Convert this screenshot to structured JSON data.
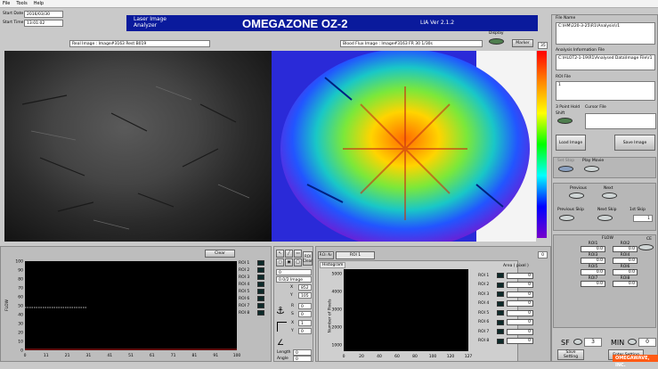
{
  "menu": [
    "File",
    "Tools",
    "Help"
  ],
  "start_date_label": "Start Date",
  "start_date": "2016/03/30",
  "start_time_label": "Start Time",
  "start_time": "13:01:02",
  "real_image_label": "Real Image : Image#3163 Rest B019",
  "flux_image_label": "Blood Flux Image : Image#3163 FR 30 1/30s",
  "banner": {
    "line1": "Laser Image",
    "line2": "Analyzer",
    "title": "OMEGAZONE OZ-2",
    "version": "LIA Ver 2.1.2"
  },
  "display_label": "Display",
  "marker_label": "Marker",
  "scale_max": "35",
  "colorbar_min": "0",
  "right": {
    "file_name_label": "File Name",
    "file_name": "C:\\HM\\220-3-25\\R1\\Analysis\\r1",
    "analysis_file_label": "Analysis Information File",
    "analysis_file": "C:\\HLOT2-1-19\\R1\\Analysed Data\\Image File\\r1",
    "roi_file_label": "ROI File",
    "roi_file": "1",
    "delay_label": "3 Point Hold",
    "cursor_label": "Cursor File",
    "cursor_sub": "Shift",
    "load_image": "Load Image",
    "save_image": "Save Image",
    "set_stop": "Set Stop",
    "play": "Play Movie",
    "previous": "Previous",
    "next": "Next",
    "previous_skip": "Previous Skip",
    "next_skip": "Next Skip",
    "1st_skip": "1st Skip",
    "skip_val": "1",
    "flow_label": "FLOW",
    "ce_label": "CE",
    "flow_heads": [
      "ROI1",
      "ROI2",
      "ROI3",
      "ROI4",
      "ROI5",
      "ROI6",
      "ROI7",
      "ROI8"
    ],
    "flow_vals": [
      "0.0",
      "0.0",
      "0.0",
      "0.0",
      "0.0",
      "0.0",
      "0.0",
      "0.0"
    ],
    "sf_label": "SF",
    "sf_val": "3",
    "min_label": "MIN",
    "min_val": "0",
    "save_setting": "Save Setting",
    "enter_setting": "Enter Setting",
    "brand": "OMEGAWAVE, INC."
  },
  "left_chart": {
    "clear": "Clear",
    "ylabel": "FLOW",
    "yticks": [
      "100",
      "90",
      "80",
      "70",
      "60",
      "50",
      "40",
      "30",
      "20",
      "10",
      "0"
    ],
    "xticks": [
      "0",
      "11",
      "21",
      "31",
      "41",
      "51",
      "61",
      "71",
      "81",
      "91",
      "100"
    ],
    "roi_labels": [
      "ROI 1",
      "ROI 2",
      "ROI 3",
      "ROI 4",
      "ROI 5",
      "ROI 6",
      "ROI 7",
      "ROI 8"
    ]
  },
  "tools": {
    "roi_clear": "ROI Clear",
    "roi_num": "0",
    "roi_type": "0.0/2 Image",
    "x_label": "X",
    "x_val": "852",
    "y_label": "Y",
    "y_val": "105",
    "r_label": "R",
    "r_val": "0",
    "s_label": "S",
    "s_val": "0",
    "xx_label": "X",
    "xx_val": "1",
    "yy_label": "Y",
    "yy_val": "0",
    "length_label": "Length",
    "length_val": "0",
    "angle_label": "Angle",
    "angle_val": "0"
  },
  "mid_chart": {
    "tabs": [
      "ROI Nr",
      "ROI 1"
    ],
    "histogram": "Histogram",
    "ylabel": "Number of Pixels",
    "yticks": [
      "5000",
      "4000",
      "3000",
      "2000",
      "1000"
    ],
    "xticks": [
      "0",
      "20",
      "40",
      "60",
      "80",
      "100",
      "120",
      "127"
    ],
    "area_label": "Area ( pixel )",
    "roi_labels": [
      "ROI 1",
      "ROI 2",
      "ROI 3",
      "ROI 4",
      "ROI 5",
      "ROI 6",
      "ROI 7",
      "ROI 8"
    ],
    "area_vals": [
      "0",
      "0",
      "0",
      "0",
      "0",
      "0",
      "0",
      "0"
    ],
    "counter": "0"
  }
}
